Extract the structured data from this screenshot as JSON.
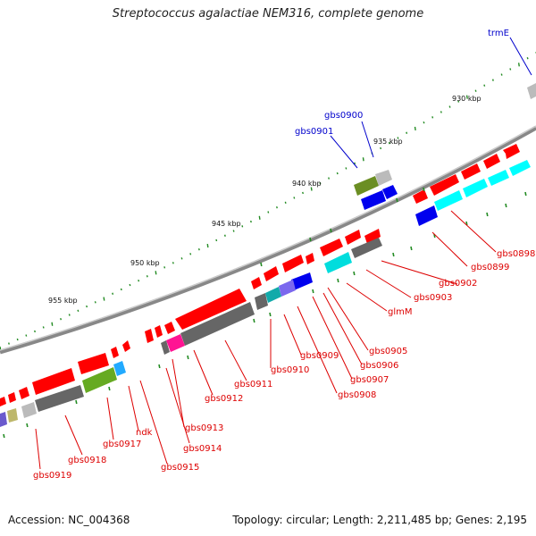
{
  "title": "Streptococcus agalactiae NEM316, complete genome",
  "footer": {
    "accession": "Accession: NC_004368",
    "topology": "Topology: circular; Length: 2,211,485 bp; Genes: 2,195"
  },
  "colors": {
    "red_gene": "#ff0000",
    "dark_gray_gene": "#666666",
    "light_gray_gene": "#bbbbbb",
    "cyan_gene": "#00ffff",
    "blue_gene": "#0000ee",
    "olive_gene": "#6b8e23",
    "green_gene": "#66aa22",
    "magenta_gene": "#ff1493",
    "teal_gene": "#11aaaa",
    "slate_gene": "#7b68ee",
    "khaki_gene": "#bdb76b",
    "backbone": "#888888",
    "tick": "#228b22",
    "red_label": "#dd0000",
    "blue_label": "#0000cc"
  },
  "scale_labels": [
    "930 kbp",
    "935 kbp",
    "940 kbp",
    "945 kbp",
    "950 kbp",
    "955 kbp"
  ],
  "red_gene_labels": [
    "gbs0898",
    "gbs0899",
    "gbs0902",
    "gbs0903",
    "glmM",
    "gbs0905",
    "gbs0906",
    "gbs0907",
    "gbs0908",
    "gbs0909",
    "gbs0910",
    "gbs0911",
    "gbs0912",
    "gbs0913",
    "gbs0914",
    "gbs0915",
    "ndk",
    "gbs0917",
    "gbs0918",
    "gbs0919"
  ],
  "blue_gene_labels": [
    "trmE",
    "gbs0900",
    "gbs0901"
  ]
}
